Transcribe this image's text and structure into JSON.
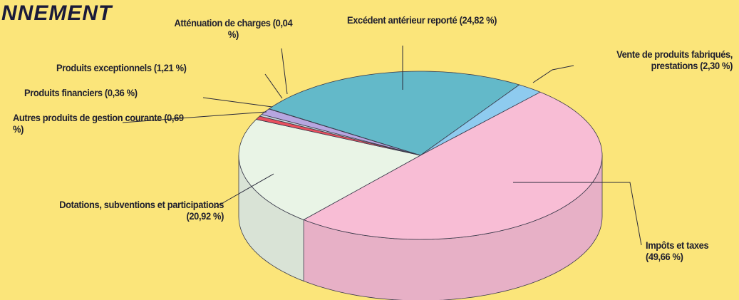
{
  "chart_data": {
    "type": "pie3d",
    "title": "NNEMENT",
    "categories": [
      "Excédent antérieur reporté",
      "Vente de produits fabriqués, prestations",
      "Impôts et taxes",
      "Dotations, subventions et participations",
      "Autres produits de gestion courante",
      "Produits financiers",
      "Produits exceptionnels",
      "Atténuation de charges"
    ],
    "values": [
      24.82,
      2.3,
      49.66,
      20.92,
      0.69,
      0.36,
      1.21,
      0.04
    ],
    "value_labels": [
      "(24,82 %)",
      "(2,30 %)",
      "(49,66 %)",
      "(20,92 %)",
      "(0,69 %)",
      "(0,36 %)",
      "(1,21 %)",
      "(0,04 %)"
    ],
    "colors": [
      "#63b9c9",
      "#8ecbef",
      "#f8bdd5",
      "#e9f4e6",
      "#e8505e",
      "#c9d7dd",
      "#b7a6e0",
      "#f4e7b4"
    ]
  }
}
